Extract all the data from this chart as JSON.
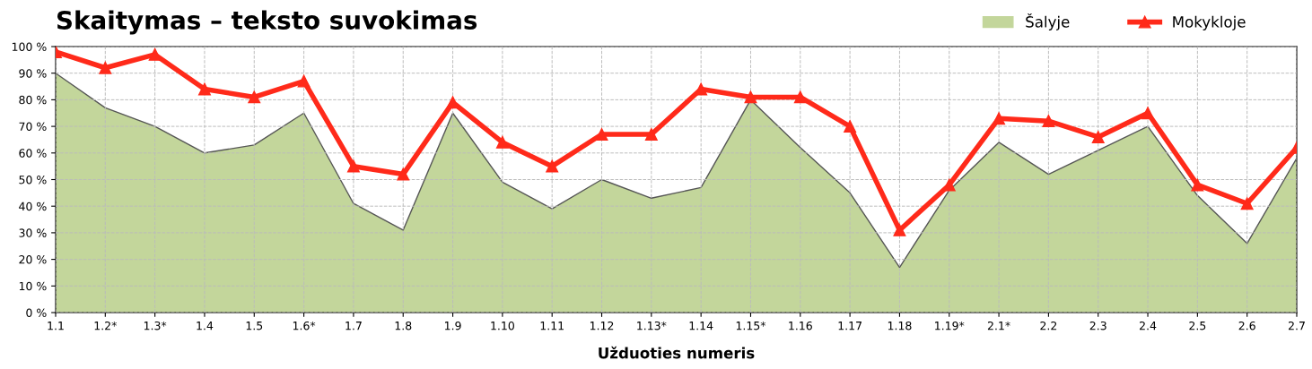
{
  "chart_data": {
    "type": "area",
    "title": "Skaitymas – teksto suvokimas",
    "xlabel": "Užduoties numeris",
    "categories": [
      "1.1",
      "1.2*",
      "1.3*",
      "1.4",
      "1.5",
      "1.6*",
      "1.7",
      "1.8",
      "1.9",
      "1.10",
      "1.11",
      "1.12",
      "1.13*",
      "1.14",
      "1.15*",
      "1.16",
      "1.17",
      "1.18",
      "1.19*",
      "2.1*",
      "2.2",
      "2.3",
      "2.4",
      "2.5",
      "2.6",
      "2.7"
    ],
    "series": [
      {
        "name": "Šalyje",
        "color": "#c3d69b",
        "values": [
          90,
          77,
          70,
          60,
          63,
          75,
          41,
          31,
          75,
          49,
          39,
          50,
          43,
          47,
          80,
          62,
          45,
          17,
          46,
          64,
          52,
          61,
          70,
          44,
          26,
          58
        ]
      },
      {
        "name": "Mokykloje",
        "type": "line",
        "color": "#ff2a1a",
        "marker": "triangle",
        "values": [
          98,
          92,
          97,
          84,
          81,
          87,
          55,
          52,
          79,
          64,
          55,
          67,
          67,
          84,
          81,
          81,
          70,
          31,
          48,
          73,
          72,
          66,
          75,
          48,
          41,
          62
        ]
      }
    ],
    "ylim": [
      0,
      100
    ],
    "yticks": [
      {
        "value": 0,
        "label": "0 %"
      },
      {
        "value": 10,
        "label": "10 %"
      },
      {
        "value": 20,
        "label": "20 %"
      },
      {
        "value": 30,
        "label": "30 %"
      },
      {
        "value": 40,
        "label": "40 %"
      },
      {
        "value": 50,
        "label": "50 %"
      },
      {
        "value": 60,
        "label": "60 %"
      },
      {
        "value": 70,
        "label": "70 %"
      },
      {
        "value": 80,
        "label": "80 %"
      },
      {
        "value": 90,
        "label": "90 %"
      },
      {
        "value": 100,
        "label": "100 %"
      }
    ],
    "grid": true,
    "legend": "top right"
  }
}
